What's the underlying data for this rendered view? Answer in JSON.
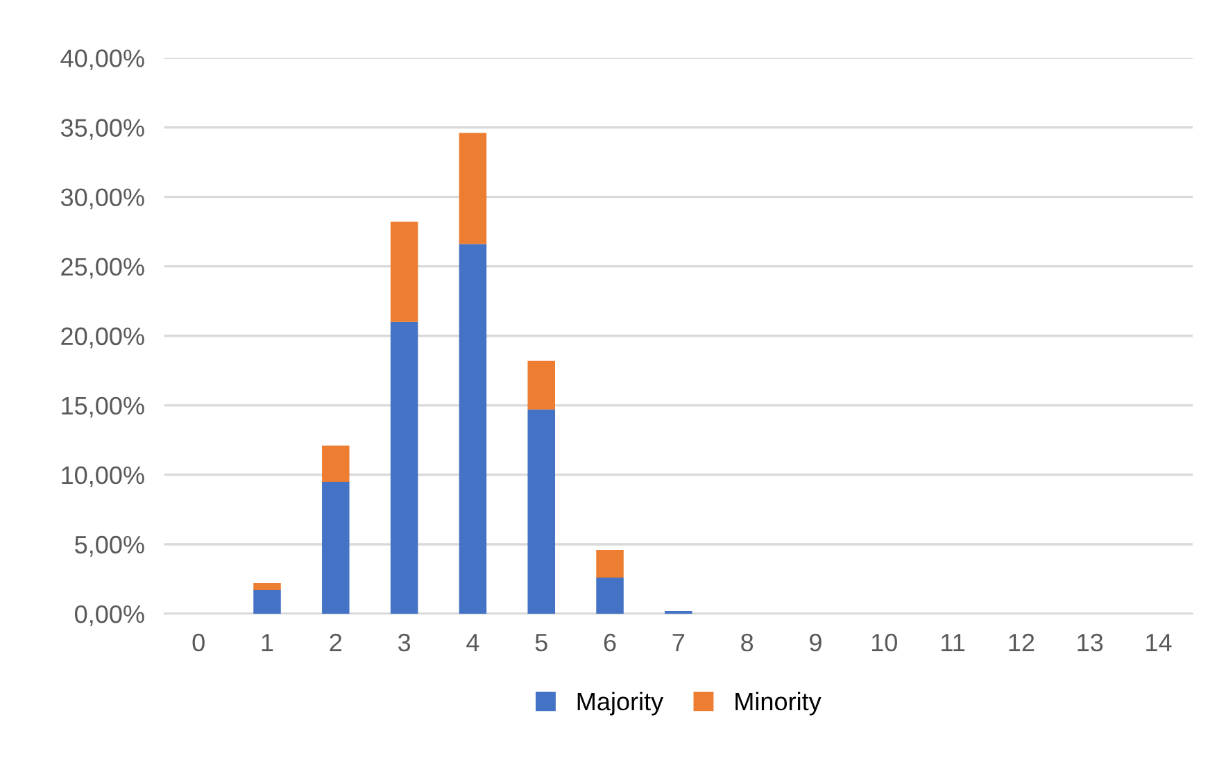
{
  "chart_data": {
    "type": "bar",
    "stacked": true,
    "categories": [
      "0",
      "1",
      "2",
      "3",
      "4",
      "5",
      "6",
      "7",
      "8",
      "9",
      "10",
      "11",
      "12",
      "13",
      "14"
    ],
    "series": [
      {
        "name": "Majority",
        "color": "#4472c4",
        "values": [
          0,
          1.7,
          9.5,
          21.0,
          26.6,
          14.7,
          2.6,
          0.2,
          0,
          0,
          0,
          0,
          0,
          0,
          0
        ]
      },
      {
        "name": "Minority",
        "color": "#ed7d31",
        "values": [
          0,
          0.5,
          2.6,
          7.2,
          8.0,
          3.5,
          2.0,
          0,
          0,
          0,
          0,
          0,
          0,
          0,
          0
        ]
      }
    ],
    "ylim": [
      0,
      40
    ],
    "yticks": [
      {
        "value": 0,
        "label": "0,00%"
      },
      {
        "value": 5,
        "label": "5,00%"
      },
      {
        "value": 10,
        "label": "10,00%"
      },
      {
        "value": 15,
        "label": "15,00%"
      },
      {
        "value": 20,
        "label": "20,00%"
      },
      {
        "value": 25,
        "label": "25,00%"
      },
      {
        "value": 30,
        "label": "30,00%"
      },
      {
        "value": 35,
        "label": "35,00%"
      },
      {
        "value": 40,
        "label": "40,00%"
      }
    ],
    "grid": "y",
    "legend": "bottom"
  }
}
